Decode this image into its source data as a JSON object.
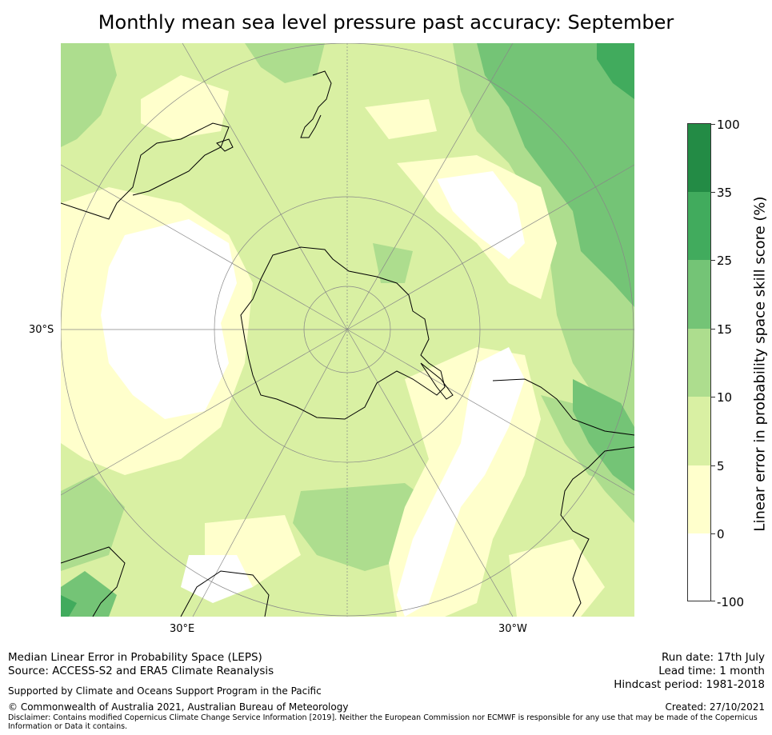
{
  "title": "Monthly mean sea level pressure past accuracy: September",
  "map": {
    "projection": "south-polar stereographic",
    "lat_label": "30°S",
    "lon_labels": [
      "30°E",
      "30°W"
    ]
  },
  "colorbar": {
    "label": "Linear error in probability space skill score (%)",
    "ticks": [
      "100",
      "35",
      "25",
      "15",
      "10",
      "5",
      "0",
      "-100"
    ],
    "bins": [
      {
        "range": "35 to 100",
        "color": "#238b45"
      },
      {
        "range": "25 to 35",
        "color": "#41ab5d"
      },
      {
        "range": "15 to 25",
        "color": "#74c476"
      },
      {
        "range": "10 to 15",
        "color": "#addd8e"
      },
      {
        "range": "5 to 10",
        "color": "#d9f0a3"
      },
      {
        "range": "0 to 5",
        "color": "#ffffcc"
      },
      {
        "range": "-100 to 0",
        "color": "#ffffff"
      }
    ]
  },
  "footer": {
    "left_line1": "Median Linear Error in Probability Space (LEPS)",
    "left_line2": "Source: ACCESS-S2 and ERA5 Climate Reanalysis",
    "supported": "Supported by Climate and Oceans Support Program in the Pacific",
    "copyright": "© Commonwealth of Australia 2021, Australian Bureau of Meteorology",
    "disclaimer_line1": "Disclaimer: Contains modified Copernicus Climate Change Service Information [2019]. Neither the European Commission nor ECMWF is responsible for any use that may be made of the Copernicus",
    "disclaimer_line2": "Information or Data it contains.",
    "run_date": "Run date: 17th July",
    "lead_time": "Lead time: 1 month",
    "hindcast": "Hindcast period: 1981-2018",
    "created": "Created: 27/10/2021"
  }
}
